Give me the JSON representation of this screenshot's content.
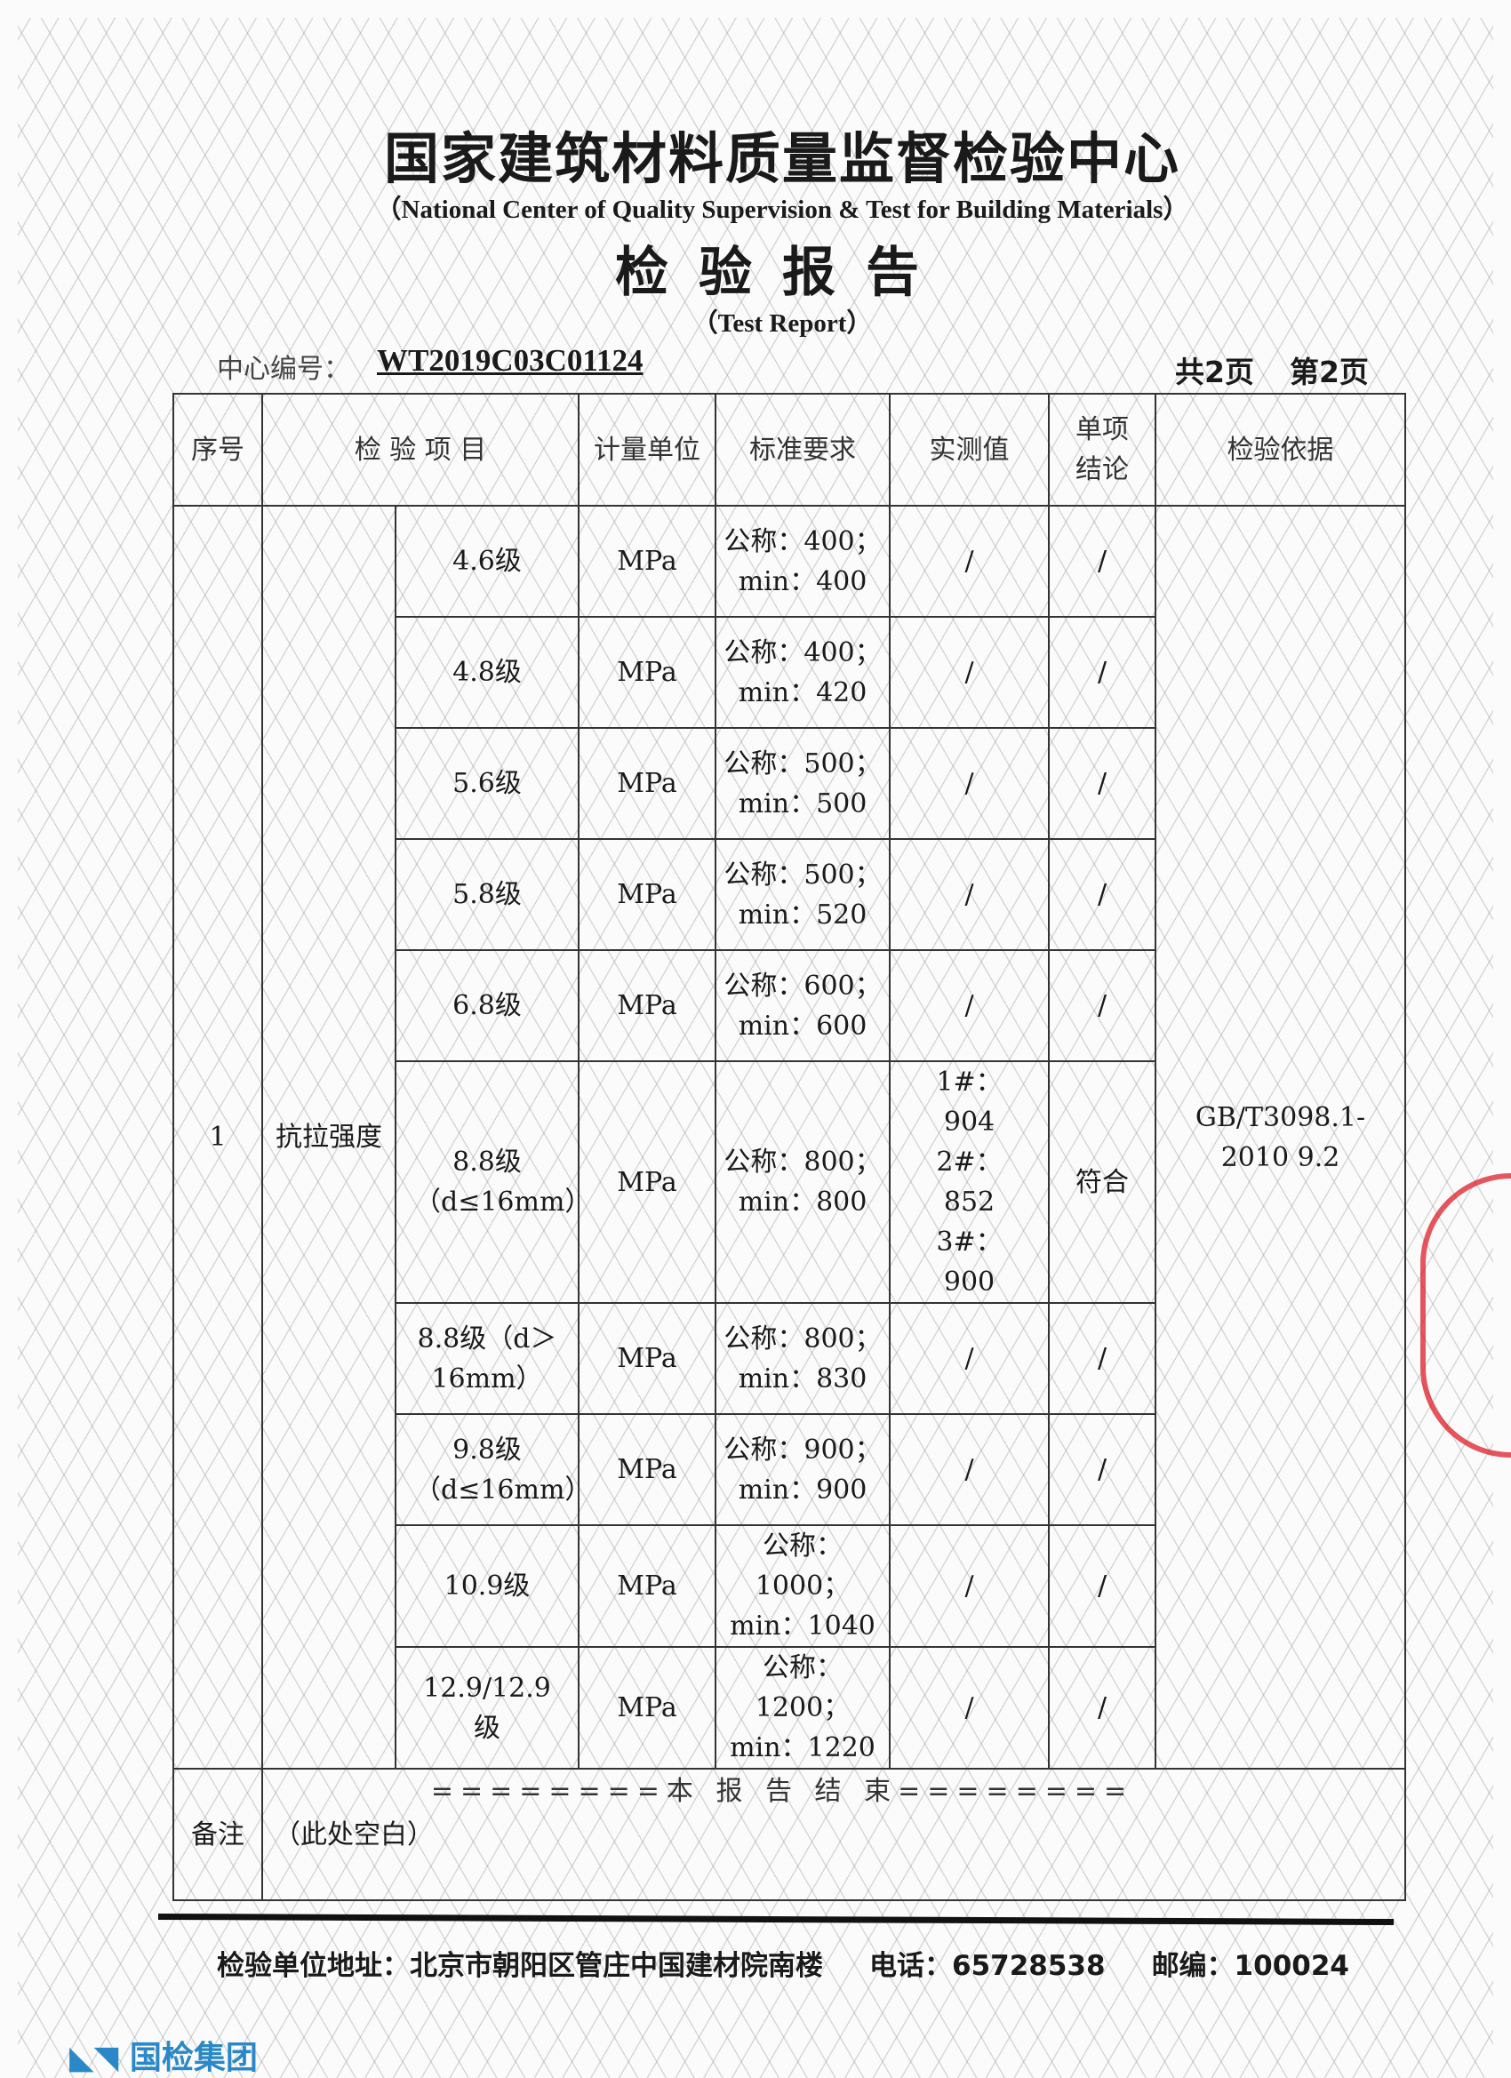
{
  "header": {
    "title": "国家建筑材料质量监督检验中心",
    "subtitle": "（National Center of Quality Supervision & Test for Building Materials）",
    "report_title": "检验报告",
    "report_subtitle": "（Test Report）",
    "center_no_label": "中心编号：",
    "center_no": "WT2019C03C01124",
    "total_pages": "共2页",
    "current_page": "第2页"
  },
  "table": {
    "columns": [
      "序号",
      "检 验 项 目",
      "计量单位",
      "标准要求",
      "实测值",
      "单项结论",
      "检验依据"
    ],
    "seq": "1",
    "item": "抗拉强度",
    "basis": "GB/T3098.1-2010 9.2",
    "rows": [
      {
        "grade": "4.6级",
        "unit": "MPa",
        "req1": "公称：400；",
        "req2": "min：400",
        "measured": "/",
        "conclusion": "/"
      },
      {
        "grade": "4.8级",
        "unit": "MPa",
        "req1": "公称：400；",
        "req2": "min：420",
        "measured": "/",
        "conclusion": "/"
      },
      {
        "grade": "5.6级",
        "unit": "MPa",
        "req1": "公称：500；",
        "req2": "min：500",
        "measured": "/",
        "conclusion": "/"
      },
      {
        "grade": "5.8级",
        "unit": "MPa",
        "req1": "公称：500；",
        "req2": "min：520",
        "measured": "/",
        "conclusion": "/"
      },
      {
        "grade": "6.8级",
        "unit": "MPa",
        "req1": "公称：600；",
        "req2": "min：600",
        "measured": "/",
        "conclusion": "/"
      },
      {
        "grade": "8.8级（d≤16mm）",
        "unit": "MPa",
        "req1": "公称：800；",
        "req2": "min：800",
        "measured": "1#：904 2#：852 3#：900",
        "conclusion": "符合"
      },
      {
        "grade": "8.8级（d＞16mm）",
        "unit": "MPa",
        "req1": "公称：800；",
        "req2": "min：830",
        "measured": "/",
        "conclusion": "/"
      },
      {
        "grade": "9.8级（d≤16mm）",
        "unit": "MPa",
        "req1": "公称：900；",
        "req2": "min：900",
        "measured": "/",
        "conclusion": "/"
      },
      {
        "grade": "10.9级",
        "unit": "MPa",
        "req1": "公称：1000；",
        "req2": "min：1040",
        "measured": "/",
        "conclusion": "/"
      },
      {
        "grade": "12.9/12.9级",
        "unit": "MPa",
        "req1": "公称：1200；",
        "req2": "min：1220",
        "measured": "/",
        "conclusion": "/"
      }
    ],
    "remark_label": "备注",
    "remark_text": "（此处空白）"
  },
  "end_text": "========本 报 告 结 束========",
  "footer": {
    "address": "检验单位地址：北京市朝阳区管庄中国建材院南楼",
    "phone": "电话：65728538",
    "postcode": "邮编：100024",
    "logo_text": "国检集团"
  },
  "colors": {
    "stamp": "#dc1e28",
    "logo": "#2a88c8"
  }
}
